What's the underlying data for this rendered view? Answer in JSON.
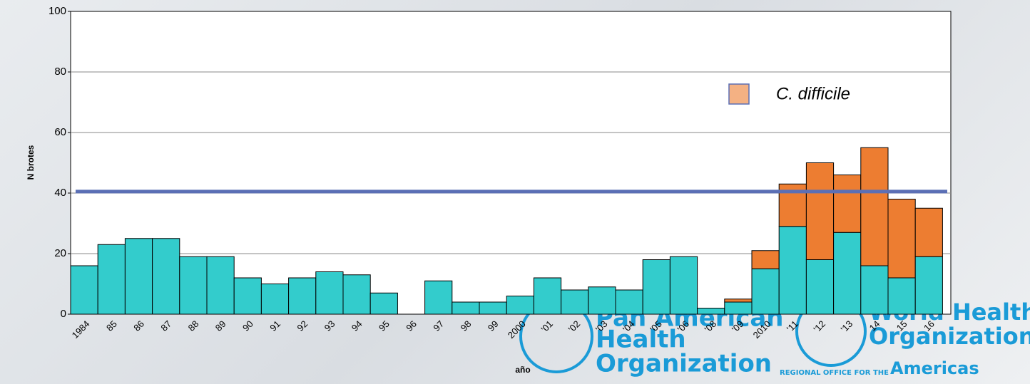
{
  "chart_data": {
    "type": "bar",
    "stacked": true,
    "y_label": "N brotes",
    "x_label": "año",
    "categories": [
      "1984",
      "85",
      "86",
      "87",
      "88",
      "89",
      "90",
      "91",
      "92",
      "93",
      "94",
      "95",
      "96",
      "97",
      "98",
      "99",
      "2000",
      "'01",
      "'02",
      "'03",
      "'04",
      "'05",
      "'06",
      "'08",
      "'09",
      "2010",
      "'11",
      "'12",
      "'13",
      "14",
      "15",
      "16"
    ],
    "series": [
      {
        "color": "#33cccc",
        "values": [
          16,
          23,
          25,
          25,
          19,
          19,
          12,
          10,
          12,
          14,
          13,
          7,
          0,
          11,
          4,
          4,
          6,
          12,
          8,
          9,
          8,
          18,
          19,
          2,
          4,
          15,
          29,
          18,
          27,
          16,
          12,
          19
        ]
      },
      {
        "name": "C. difficile",
        "color": "#ed7d31",
        "legend_color": "#f4b183",
        "values": [
          0,
          0,
          0,
          0,
          0,
          0,
          0,
          0,
          0,
          0,
          0,
          0,
          0,
          0,
          0,
          0,
          0,
          0,
          0,
          0,
          0,
          0,
          0,
          0,
          1,
          6,
          14,
          32,
          19,
          39,
          26,
          16
        ]
      }
    ],
    "reference_line": {
      "value": 40.5,
      "color": "#5b6fb5"
    },
    "ylim": [
      0,
      100
    ],
    "yticks": [
      0,
      20,
      40,
      60,
      80,
      100
    ],
    "grid": true
  },
  "logos": {
    "paho": [
      "Pan American",
      "Health",
      "Organization"
    ],
    "who": [
      "World Health",
      "Organization"
    ],
    "who_sub": "REGIONAL OFFICE FOR THE",
    "who_region": "Americas"
  }
}
